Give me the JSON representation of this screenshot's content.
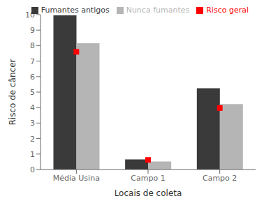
{
  "chart_data": {
    "type": "bar",
    "categories": [
      "Média Usina",
      "Campo 1",
      "Campo 2"
    ],
    "series": [
      {
        "name": "Fumantes antigos",
        "type": "bar",
        "color": "#3a3a3a",
        "values": [
          9.95,
          0.65,
          5.25
        ]
      },
      {
        "name": "Nunca fumantes",
        "type": "bar",
        "color": "#b5b5b5",
        "values": [
          8.15,
          0.52,
          4.22
        ]
      },
      {
        "name": "Risco geral",
        "type": "scatter",
        "marker": "square",
        "color": "#ff0000",
        "values": [
          7.6,
          0.62,
          3.97
        ]
      }
    ],
    "xlabel": "Locais de coleta",
    "ylabel": "Risco de câncer",
    "ylim": [
      0,
      10
    ],
    "yticks": [
      0,
      1,
      2,
      3,
      4,
      5,
      6,
      7,
      8,
      9,
      10
    ],
    "legend": "upper right"
  }
}
